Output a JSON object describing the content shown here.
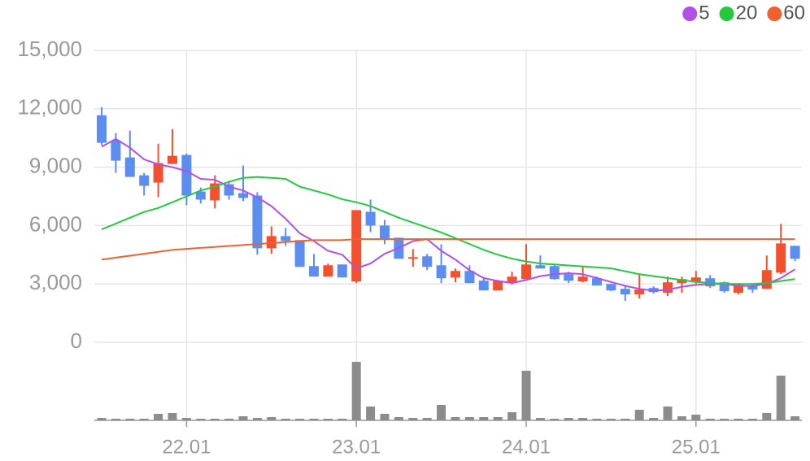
{
  "chart_data": {
    "type": "candlestick",
    "categories": [
      null,
      null,
      null,
      null,
      null,
      null,
      "22.01",
      null,
      null,
      null,
      null,
      null,
      null,
      null,
      null,
      null,
      null,
      null,
      "23.01",
      null,
      null,
      null,
      null,
      null,
      null,
      null,
      null,
      null,
      null,
      null,
      "24.01",
      null,
      null,
      null,
      null,
      null,
      null,
      null,
      null,
      null,
      null,
      null,
      "25.01",
      null,
      null,
      null,
      null,
      null,
      null,
      null
    ],
    "open": [
      11667,
      10375,
      9500,
      8583,
      8208,
      9167,
      9625,
      7750,
      7292,
      8125,
      7667,
      7542,
      4833,
      5458,
      5250,
      3917,
      3375,
      4000,
      3125,
      6708,
      6000,
      5375,
      4292,
      4417,
      3958,
      3333,
      3667,
      3167,
      2667,
      3042,
      3250,
      3958,
      3917,
      3500,
      3125,
      3292,
      3000,
      2750,
      2458,
      2792,
      2542,
      3042,
      3083,
      3292,
      3083,
      2542,
      2917,
      2750,
      3583,
      4958
    ],
    "high": [
      12083,
      10750,
      10875,
      8708,
      10208,
      10958,
      9708,
      7958,
      8583,
      8292,
      9083,
      7708,
      5958,
      5875,
      5250,
      4542,
      4042,
      4000,
      6792,
      7333,
      6292,
      5375,
      4792,
      4542,
      5042,
      3792,
      3958,
      3292,
      3208,
      3625,
      5042,
      4458,
      4000,
      3625,
      3917,
      3375,
      3000,
      2875,
      3458,
      2875,
      3375,
      3375,
      3667,
      3458,
      3125,
      3042,
      3000,
      4458,
      6083,
      4958
    ],
    "low": [
      10125,
      8708,
      8500,
      7542,
      7458,
      9167,
      7042,
      7125,
      6875,
      7333,
      7250,
      4500,
      4542,
      4958,
      3875,
      3375,
      3375,
      3333,
      3042,
      5667,
      5042,
      4292,
      3875,
      3708,
      3042,
      3083,
      3042,
      2667,
      2667,
      2958,
      3250,
      3792,
      3208,
      3042,
      3083,
      2917,
      2625,
      2125,
      2250,
      2500,
      2375,
      2542,
      3000,
      2792,
      2542,
      2458,
      2542,
      2750,
      3500,
      4167
    ],
    "close": [
      10250,
      9333,
      8500,
      8042,
      9208,
      9583,
      7542,
      7333,
      8167,
      7542,
      7417,
      4833,
      5458,
      5208,
      3875,
      3375,
      3958,
      3333,
      6792,
      6000,
      5333,
      4292,
      4375,
      3875,
      3292,
      3667,
      3042,
      2667,
      3167,
      3375,
      4000,
      3792,
      3250,
      3167,
      3375,
      2917,
      2667,
      2458,
      2708,
      2583,
      3083,
      3250,
      3333,
      2875,
      2625,
      2958,
      2708,
      3708,
      5083,
      4292
    ],
    "up_color": "#f5502d",
    "down_color": "#5b8ef0",
    "series": [
      {
        "name": "5",
        "color": "#b24fe8",
        "values": [
          10050,
          10450,
          10000,
          9400,
          9150,
          9000,
          8800,
          8400,
          8350,
          8000,
          7800,
          7450,
          7000,
          6350,
          5600,
          5200,
          4700,
          4500,
          3800,
          4050,
          4550,
          4850,
          5200,
          5300,
          4700,
          4250,
          3700,
          3300,
          3150,
          3050,
          3200,
          3400,
          3500,
          3550,
          3500,
          3300,
          3100,
          2900,
          2750,
          2650,
          2700,
          2850,
          2950,
          3000,
          3000,
          2900,
          2900,
          3000,
          3300,
          3750
        ]
      },
      {
        "name": "20",
        "color": "#25c93e",
        "values": [
          5800,
          6100,
          6400,
          6700,
          6900,
          7200,
          7500,
          7800,
          8000,
          8250,
          8450,
          8500,
          8450,
          8400,
          8000,
          7800,
          7600,
          7350,
          7200,
          7000,
          6700,
          6400,
          6150,
          5900,
          5650,
          5350,
          5050,
          4750,
          4500,
          4300,
          4150,
          4050,
          4000,
          3950,
          3900,
          3850,
          3800,
          3650,
          3500,
          3400,
          3300,
          3200,
          3100,
          3050,
          3000,
          3000,
          3000,
          3050,
          3150,
          3250
        ]
      },
      {
        "name": "60",
        "color": "#f2612d",
        "values": [
          4250,
          4350,
          4450,
          4550,
          4650,
          4750,
          4800,
          4850,
          4900,
          4950,
          5000,
          5050,
          5100,
          5150,
          5200,
          5250,
          5250,
          5250,
          5300,
          5300,
          5300,
          5300,
          5300,
          5300,
          5300,
          5300,
          5300,
          5300,
          5300,
          5300,
          5300,
          5300,
          5300,
          5300,
          5300,
          5300,
          5300,
          5300,
          5300,
          5300,
          5300,
          5300,
          5300,
          5300,
          5300,
          5300,
          5300,
          5300,
          5300,
          5300
        ]
      }
    ],
    "volume": {
      "color": "#8c8c8c",
      "values": [
        3,
        2,
        2,
        2,
        8,
        9,
        3,
        2,
        2,
        2,
        5,
        3,
        4,
        2,
        2,
        2,
        2,
        2,
        72,
        17,
        8,
        4,
        3,
        3,
        19,
        4,
        4,
        4,
        4,
        10,
        61,
        3,
        2,
        3,
        3,
        2,
        2,
        2,
        13,
        3,
        17,
        5,
        7,
        2,
        2,
        2,
        2,
        9,
        55,
        5
      ]
    },
    "volume_ylim": [
      0,
      80
    ],
    "ylim": [
      0,
      15000
    ],
    "yticks": [
      0,
      {
        "value": 3000,
        "label": "3,000"
      },
      {
        "value": 6000,
        "label": "6,000"
      },
      {
        "value": 9000,
        "label": "9,000"
      },
      {
        "value": 12000,
        "label": "12,000"
      },
      {
        "value": 15000,
        "label": "15,000"
      }
    ],
    "grid": true,
    "legend": "top-right"
  }
}
